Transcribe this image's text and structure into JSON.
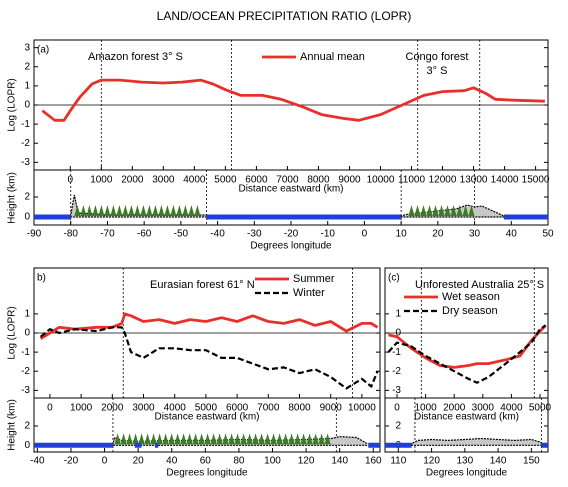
{
  "title": "LAND/OCEAN PRECIPITATION RATIO (LOPR)",
  "chart_data": [
    {
      "type": "line",
      "panel": "(a)",
      "ylabel": "Log (LOPR)",
      "xlabel": "Distance eastward (km)",
      "annotations": [
        "Amazon forest 3° S",
        "Congo forest",
        "3° S"
      ],
      "xlim": [
        -1170,
        15400
      ],
      "xticks": [
        0,
        1000,
        2000,
        3000,
        4000,
        5000,
        6000,
        7000,
        8000,
        9000,
        10000,
        11000,
        12000,
        13000,
        14000,
        15000
      ],
      "ylim": [
        -3.4,
        3.4
      ],
      "yticks": [
        -3,
        -2,
        -1,
        0,
        1,
        2,
        3
      ],
      "zero_line": true,
      "vlines": [
        1000,
        5200,
        11200,
        13200
      ],
      "x": [
        -900,
        -500,
        -200,
        0,
        300,
        700,
        1000,
        1600,
        2300,
        3000,
        3600,
        4200,
        4600,
        5000,
        5500,
        6200,
        6800,
        7500,
        8100,
        8800,
        9300,
        10000,
        10700,
        11400,
        12000,
        12700,
        13000,
        13400,
        13700,
        14300,
        15300
      ],
      "series": [
        {
          "name": "Annual mean",
          "color": "#e8302a",
          "dash": false,
          "values": [
            -0.3,
            -0.8,
            -0.8,
            -0.3,
            0.4,
            1.1,
            1.3,
            1.3,
            1.2,
            1.15,
            1.2,
            1.3,
            1.1,
            0.8,
            0.5,
            0.5,
            0.3,
            -0.1,
            -0.5,
            -0.7,
            -0.8,
            -0.5,
            0.0,
            0.5,
            0.7,
            0.75,
            0.9,
            0.6,
            0.3,
            0.25,
            0.2
          ]
        }
      ]
    },
    {
      "type": "area",
      "ylabel": "Height (km)",
      "xlabel": "Degrees longitude",
      "xlim": [
        -90,
        50
      ],
      "xticks": [
        -90,
        -80,
        -70,
        -60,
        -50,
        -40,
        -30,
        -20,
        -10,
        0,
        10,
        20,
        30,
        40,
        50
      ],
      "ylim": [
        -0.8,
        4.7
      ],
      "yticks": [
        0,
        2
      ],
      "vlines": [
        -80,
        -43,
        10,
        30
      ],
      "color": "#c8c8c8",
      "ocean_color": "#1f3fd8",
      "forest_color": "#3a7d22",
      "ocean": [
        [
          -90,
          -80
        ],
        [
          -43,
          10
        ],
        [
          38,
          50
        ]
      ],
      "forest": [
        [
          -79,
          -44
        ],
        [
          12,
          30
        ]
      ],
      "x": [
        -80,
        -79.5,
        -79,
        -78,
        -70,
        -60,
        -50,
        -43,
        -20,
        10,
        12,
        15,
        20,
        25,
        28,
        30,
        32,
        35,
        38
      ],
      "values": [
        0.1,
        1.2,
        2.2,
        0.4,
        0.2,
        0.2,
        0.2,
        0.2,
        null,
        0.1,
        0.3,
        0.4,
        0.6,
        0.8,
        1.2,
        1.0,
        1.1,
        0.6,
        0.1
      ]
    },
    {
      "type": "line",
      "panel": "b)",
      "ylabel": "Log (LOPR)",
      "xlabel": "Distance eastward (km)",
      "annotations": [
        "Eurasian forest 61° N"
      ],
      "xlim": [
        -510,
        10580
      ],
      "xticks": [
        0,
        1000,
        2000,
        3000,
        4000,
        5000,
        6000,
        7000,
        8000,
        9000,
        10000
      ],
      "ylim": [
        -3.4,
        3.4
      ],
      "yticks": [
        -3,
        -2,
        -1,
        0,
        1
      ],
      "zero_line": true,
      "vlines": [
        2350,
        9700
      ],
      "x": [
        -300,
        0,
        300,
        800,
        1500,
        2000,
        2300,
        2400,
        2600,
        3000,
        3500,
        4000,
        4500,
        5000,
        5500,
        6000,
        6500,
        7000,
        7500,
        8000,
        8500,
        9000,
        9500,
        10000,
        10300,
        10500
      ],
      "series": [
        {
          "name": "Summer",
          "color": "#e8302a",
          "dash": false,
          "values": [
            -0.3,
            0.0,
            0.3,
            0.2,
            0.3,
            0.3,
            0.5,
            1.0,
            0.9,
            0.6,
            0.7,
            0.5,
            0.7,
            0.6,
            0.8,
            0.6,
            0.9,
            0.6,
            0.5,
            0.7,
            0.4,
            0.6,
            0.1,
            0.5,
            0.5,
            0.3
          ]
        },
        {
          "name": "Winter",
          "color": "#000000",
          "dash": true,
          "values": [
            -0.2,
            0.2,
            0.0,
            0.2,
            0.1,
            0.3,
            0.3,
            0.0,
            -1.0,
            -1.3,
            -0.8,
            -0.8,
            -0.9,
            -0.9,
            -1.3,
            -1.3,
            -1.6,
            -1.9,
            -1.8,
            -2.1,
            -1.9,
            -2.3,
            -2.9,
            -2.4,
            -2.8,
            -2.0
          ]
        }
      ]
    },
    {
      "type": "area",
      "ylabel": "Height (km)",
      "xlabel": "Degrees longitude",
      "xlim": [
        -42,
        164
      ],
      "xticks": [
        -40,
        -20,
        0,
        20,
        40,
        60,
        80,
        100,
        120,
        140,
        160
      ],
      "ylim": [
        -0.7,
        4.9
      ],
      "yticks": [
        0,
        2
      ],
      "vlines": [
        5,
        138
      ],
      "color": "#c8c8c8",
      "ocean_color": "#1f3fd8",
      "forest_color": "#3a7d22",
      "ocean": [
        [
          -42,
          5
        ],
        [
          18,
          22
        ],
        [
          30,
          32
        ],
        [
          157,
          164
        ]
      ],
      "forest": [
        [
          6,
          135
        ]
      ],
      "x": [
        5,
        6,
        10,
        20,
        40,
        60,
        80,
        100,
        120,
        135,
        140,
        150,
        156
      ],
      "values": [
        0.1,
        0.8,
        0.5,
        0.4,
        0.5,
        0.5,
        0.6,
        0.5,
        0.6,
        0.7,
        0.9,
        0.8,
        0.2
      ]
    },
    {
      "type": "line",
      "panel": "(c)",
      "xlabel": "Distance eastward (km)",
      "annotations": [
        "Unforested Australia 25° S"
      ],
      "xlim": [
        -420,
        5280
      ],
      "xticks": [
        0,
        1000,
        2000,
        3000,
        4000,
        5000
      ],
      "ylim": [
        -3.4,
        3.4
      ],
      "yticks": [
        -3,
        -2,
        -1,
        0,
        1
      ],
      "zero_line": true,
      "vlines": [
        850,
        4800
      ],
      "x": [
        -300,
        0,
        500,
        1000,
        1500,
        2000,
        2500,
        2800,
        3200,
        3800,
        4300,
        4700,
        5000,
        5200
      ],
      "series": [
        {
          "name": "Wet season",
          "color": "#e8302a",
          "dash": false,
          "values": [
            -0.1,
            -0.2,
            -0.8,
            -1.3,
            -1.7,
            -1.8,
            -1.7,
            -1.6,
            -1.6,
            -1.4,
            -1.2,
            -0.4,
            0.1,
            0.4
          ]
        },
        {
          "name": "Dry season",
          "color": "#000000",
          "dash": true,
          "values": [
            -1.0,
            -0.5,
            -0.7,
            -1.2,
            -1.6,
            -2.0,
            -2.4,
            -2.6,
            -2.3,
            -1.6,
            -1.0,
            -0.5,
            0.2,
            0.4
          ]
        }
      ]
    },
    {
      "type": "area",
      "xlabel": "Degrees longitude",
      "xlim": [
        106,
        155
      ],
      "xticks": [
        110,
        120,
        130,
        140,
        150
      ],
      "ylim": [
        -0.7,
        4.9
      ],
      "yticks": [
        0,
        2
      ],
      "vlines": [
        115,
        153
      ],
      "color": "#c8c8c8",
      "ocean_color": "#1f3fd8",
      "forest_color": "#3a7d22",
      "ocean": [
        [
          106,
          114
        ],
        [
          153,
          155
        ]
      ],
      "x": [
        114,
        116,
        120,
        125,
        130,
        135,
        140,
        145,
        150,
        153
      ],
      "values": [
        0.2,
        0.5,
        0.6,
        0.5,
        0.6,
        0.7,
        0.6,
        0.5,
        0.6,
        0.3
      ]
    }
  ]
}
